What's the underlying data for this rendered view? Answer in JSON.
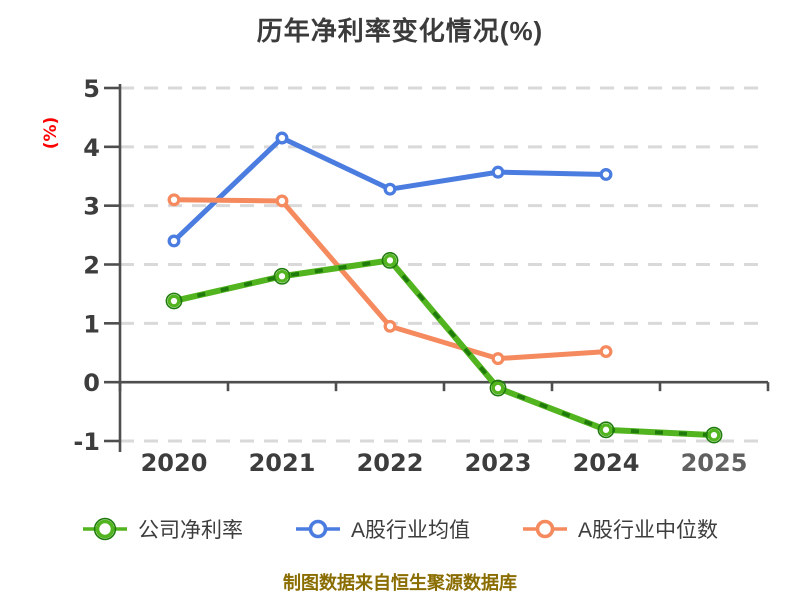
{
  "title": "历年净利率变化情况(%)",
  "y_axis_label": "(%)",
  "footer": "制图数据来自恒生聚源数据库",
  "legend": [
    {
      "label": "公司净利率",
      "color": "#52b41e",
      "dark_color": "#1f7c0c"
    },
    {
      "label": "A股行业均值",
      "color": "#4b7ce0"
    },
    {
      "label": "A股行业中位数",
      "color": "#f58a5f"
    }
  ],
  "chart_data": {
    "type": "line",
    "title": "历年净利率变化情况(%)",
    "ylabel": "(%)",
    "categories": [
      "2020",
      "2021",
      "2022",
      "2023",
      "2024",
      "2025"
    ],
    "series": [
      {
        "name": "公司净利率",
        "color": "#52b41e",
        "dark_color": "#1f7c0c",
        "values": [
          1.38,
          1.8,
          2.07,
          -0.1,
          -0.81,
          -0.9
        ]
      },
      {
        "name": "A股行业均值",
        "color": "#4b7ce0",
        "values": [
          2.4,
          4.15,
          3.28,
          3.57,
          3.53,
          null
        ]
      },
      {
        "name": "A股行业中位数",
        "color": "#f58a5f",
        "values": [
          3.1,
          3.08,
          0.95,
          0.4,
          0.52,
          null
        ]
      }
    ],
    "ylim": [
      -1,
      5
    ],
    "y_ticks": [
      5,
      4,
      3,
      2,
      1,
      0,
      -1
    ],
    "grid": "dashed-horizontal",
    "legend_position": "bottom",
    "marker": "open-circle"
  }
}
